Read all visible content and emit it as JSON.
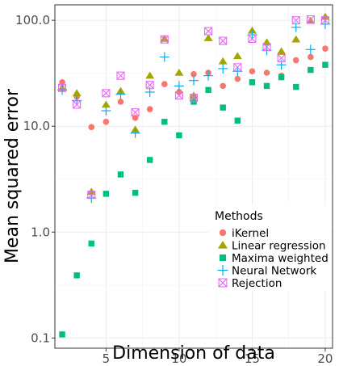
{
  "chart_data": {
    "type": "scatter",
    "xlabel": "Dimension of data",
    "ylabel": "Mean squared error",
    "xlim": [
      1.5,
      20.5
    ],
    "ylim": [
      0.08,
      140
    ],
    "y_scale": "log",
    "grid": true,
    "legend_position": "bottom-right",
    "legend_title": "Methods",
    "x_ticks": [
      {
        "value": 5,
        "label": "5"
      },
      {
        "value": 10,
        "label": "10"
      },
      {
        "value": 15,
        "label": "15"
      },
      {
        "value": 20,
        "label": "20"
      }
    ],
    "y_ticks": [
      {
        "value": 0.1,
        "label": "0.1"
      },
      {
        "value": 1,
        "label": "1.0"
      },
      {
        "value": 10,
        "label": "10.0"
      },
      {
        "value": 100,
        "label": "100.0"
      }
    ],
    "series": [
      {
        "name": "iKernel",
        "marker": "circle",
        "color": "#F8766D",
        "points": [
          [
            2,
            26
          ],
          [
            3,
            19
          ],
          [
            4,
            9.8
          ],
          [
            5,
            11
          ],
          [
            6,
            17
          ],
          [
            7,
            12
          ],
          [
            8,
            14.5
          ],
          [
            9,
            25
          ],
          [
            10,
            21
          ],
          [
            11,
            31
          ],
          [
            12,
            32
          ],
          [
            13,
            24
          ],
          [
            14,
            28
          ],
          [
            15,
            33
          ],
          [
            16,
            32
          ],
          [
            17,
            30
          ],
          [
            18,
            42
          ],
          [
            19,
            45
          ],
          [
            20,
            54
          ]
        ]
      },
      {
        "name": "Linear regression",
        "marker": "triangle",
        "color": "#A3A500",
        "points": [
          [
            2,
            23
          ],
          [
            3,
            20.5
          ],
          [
            4,
            2.4
          ],
          [
            5,
            16
          ],
          [
            6,
            21.5
          ],
          [
            7,
            9.3
          ],
          [
            8,
            30
          ],
          [
            9,
            67
          ],
          [
            10,
            32
          ],
          [
            11,
            19.5
          ],
          [
            12,
            68
          ],
          [
            13,
            41
          ],
          [
            14,
            46
          ],
          [
            15,
            80
          ],
          [
            16,
            62
          ],
          [
            17,
            51
          ],
          [
            18,
            66
          ],
          [
            19,
            99
          ],
          [
            20,
            108
          ]
        ]
      },
      {
        "name": "Maxima weighted",
        "marker": "square",
        "color": "#00BF7D",
        "points": [
          [
            2,
            0.108
          ],
          [
            3,
            0.39
          ],
          [
            4,
            0.78
          ],
          [
            5,
            2.3
          ],
          [
            6,
            3.5
          ],
          [
            7,
            2.35
          ],
          [
            8,
            4.8
          ],
          [
            9,
            11
          ],
          [
            10,
            8.2
          ],
          [
            11,
            17
          ],
          [
            12,
            22
          ],
          [
            13,
            15
          ],
          [
            14,
            11.3
          ],
          [
            15,
            26
          ],
          [
            16,
            24
          ],
          [
            17,
            29
          ],
          [
            18,
            23.5
          ],
          [
            19,
            34
          ],
          [
            20,
            38
          ]
        ]
      },
      {
        "name": "Neural Network",
        "marker": "plus",
        "color": "#00B0F6",
        "points": [
          [
            2,
            22
          ],
          [
            3,
            17.5
          ],
          [
            4,
            2.1
          ],
          [
            5,
            14
          ],
          [
            6,
            20
          ],
          [
            7,
            8.6
          ],
          [
            8,
            21
          ],
          [
            9,
            45
          ],
          [
            10,
            24
          ],
          [
            11,
            27
          ],
          [
            12,
            30
          ],
          [
            13,
            35
          ],
          [
            14,
            33
          ],
          [
            15,
            73
          ],
          [
            16,
            52
          ],
          [
            17,
            38
          ],
          [
            18,
            86
          ],
          [
            19,
            53
          ],
          [
            20,
            92
          ]
        ]
      },
      {
        "name": "Rejection",
        "marker": "square-x",
        "color": "#E76BF3",
        "points": [
          [
            2,
            23
          ],
          [
            3,
            16
          ],
          [
            4,
            2.25
          ],
          [
            5,
            20.5
          ],
          [
            6,
            30
          ],
          [
            7,
            13.5
          ],
          [
            8,
            24.5
          ],
          [
            9,
            66
          ],
          [
            10,
            19.5
          ],
          [
            11,
            18.5
          ],
          [
            12,
            79
          ],
          [
            13,
            64
          ],
          [
            14,
            36
          ],
          [
            15,
            67
          ],
          [
            16,
            56
          ],
          [
            17,
            44
          ],
          [
            18,
            100
          ],
          [
            19,
            102
          ],
          [
            20,
            100
          ]
        ]
      }
    ]
  }
}
